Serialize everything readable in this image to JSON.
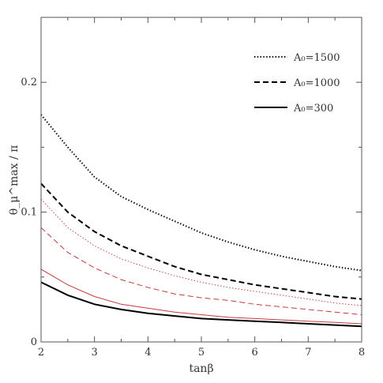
{
  "chart_data": {
    "type": "line",
    "xlabel": "tanβ",
    "ylabel": "θ_μ^max / π",
    "xlim": [
      2,
      8
    ],
    "ylim": [
      0,
      0.25
    ],
    "xticks": [
      2,
      3,
      4,
      5,
      6,
      7,
      8
    ],
    "yticks": [
      0,
      0.1,
      0.2
    ],
    "ytick_labels": [
      "0",
      "0.1",
      "0.2"
    ],
    "grid": false,
    "legend_position": "top-right",
    "legend": [
      {
        "label": "A₀=1500",
        "style": "dotted",
        "color": "#000000"
      },
      {
        "label": "A₀=1000",
        "style": "dashed",
        "color": "#000000"
      },
      {
        "label": "A₀=300",
        "style": "solid",
        "color": "#000000"
      }
    ],
    "series": [
      {
        "style": "dotted",
        "color": "#000000",
        "width": 2,
        "legend_index": 0,
        "x": [
          2,
          2.5,
          3,
          3.5,
          4,
          4.5,
          5,
          5.5,
          6,
          6.5,
          7,
          7.5,
          8
        ],
        "y": [
          0.175,
          0.15,
          0.127,
          0.112,
          0.102,
          0.093,
          0.084,
          0.077,
          0.071,
          0.066,
          0.062,
          0.058,
          0.055
        ]
      },
      {
        "style": "dashed",
        "color": "#000000",
        "width": 2,
        "legend_index": 1,
        "x": [
          2,
          2.5,
          3,
          3.5,
          4,
          4.5,
          5,
          5.5,
          6,
          6.5,
          7,
          7.5,
          8
        ],
        "y": [
          0.122,
          0.1,
          0.085,
          0.074,
          0.066,
          0.058,
          0.052,
          0.048,
          0.044,
          0.041,
          0.038,
          0.035,
          0.033
        ]
      },
      {
        "style": "solid",
        "color": "#000000",
        "width": 2,
        "legend_index": 2,
        "x": [
          2,
          2.5,
          3,
          3.5,
          4,
          4.5,
          5,
          5.5,
          6,
          6.5,
          7,
          7.5,
          8
        ],
        "y": [
          0.046,
          0.036,
          0.029,
          0.025,
          0.022,
          0.02,
          0.018,
          0.017,
          0.016,
          0.015,
          0.014,
          0.013,
          0.012
        ]
      },
      {
        "style": "dotted",
        "color": "#c33b3b",
        "width": 1,
        "x": [
          2,
          2.5,
          3,
          3.5,
          4,
          4.5,
          5,
          5.5,
          6,
          6.5,
          7,
          7.5,
          8
        ],
        "y": [
          0.11,
          0.088,
          0.074,
          0.064,
          0.057,
          0.051,
          0.046,
          0.042,
          0.039,
          0.036,
          0.033,
          0.03,
          0.028
        ]
      },
      {
        "style": "dashed",
        "color": "#c33b3b",
        "width": 1,
        "x": [
          2,
          2.5,
          3,
          3.5,
          4,
          4.5,
          5,
          5.5,
          6,
          6.5,
          7,
          7.5,
          8
        ],
        "y": [
          0.088,
          0.069,
          0.057,
          0.048,
          0.042,
          0.037,
          0.034,
          0.032,
          0.029,
          0.027,
          0.025,
          0.023,
          0.021
        ]
      },
      {
        "style": "solid",
        "color": "#c33b3b",
        "width": 1,
        "x": [
          2,
          2.5,
          3,
          3.5,
          4,
          4.5,
          5,
          5.5,
          6,
          6.5,
          7,
          7.5,
          8
        ],
        "y": [
          0.056,
          0.044,
          0.035,
          0.029,
          0.026,
          0.023,
          0.021,
          0.019,
          0.018,
          0.017,
          0.016,
          0.015,
          0.014
        ]
      }
    ]
  }
}
